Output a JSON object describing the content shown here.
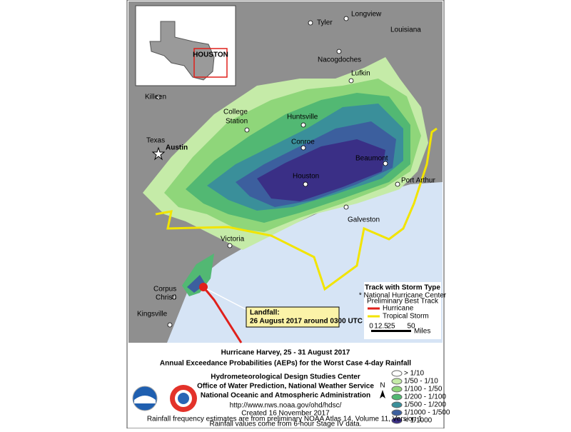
{
  "inset": {
    "label": "HOUSTON"
  },
  "cities": [
    "Tyler",
    "Longview",
    "Louisiana",
    "Nacogdoches",
    "Lufkin",
    "Killeen",
    "College",
    "Station",
    "Huntsville",
    "Austin",
    "Texas",
    "Conroe",
    "Beaumont",
    "Houston",
    "Port Arthur",
    "Galveston",
    "Victoria",
    "Corpus",
    "Christi",
    "Kingsville"
  ],
  "track_legend": {
    "title": "Track with Storm Type",
    "note": [
      "* National Hurricane Center",
      "Preliminary Best Track"
    ],
    "items": [
      {
        "label": "Hurricane",
        "color": "#e0201b"
      },
      {
        "label": "Tropical Storm",
        "color": "#f2e400"
      }
    ],
    "scale": [
      "0",
      "12.5",
      "25",
      "50"
    ],
    "scale_unit": "Miles"
  },
  "landfall": {
    "title": "Landfall:",
    "text": "26 August 2017 around 0300 UTC"
  },
  "title": [
    "Hurricane Harvey, 25 - 31 August 2017",
    "Annual Exceedance Probabilities (AEPs) for the Worst Case 4-day Rainfall"
  ],
  "agency": [
    "Hydrometeorological Design Studies Center",
    "Office of Water Prediction, National Weather Service",
    "National Oceanic and Atmospheric Administration"
  ],
  "url": "http://www.nws.noaa.gov/ohd/hdsc/",
  "notes": [
    "Created 16 November 2017",
    "Rainfall frequency estimates are from preliminary NOAA Atlas 14, Volume 11, Version 1.",
    "Rainfall values come from 6-hour Stage IV data."
  ],
  "north": "N",
  "aep_legend": [
    {
      "label": "> 1/10",
      "color": "#ffffff"
    },
    {
      "label": "1/50 - 1/10",
      "color": "#c5eba8"
    },
    {
      "label": "1/100 - 1/50",
      "color": "#8fd67a"
    },
    {
      "label": "1/200 - 1/100",
      "color": "#52b873"
    },
    {
      "label": "1/500 - 1/200",
      "color": "#3a8f9a"
    },
    {
      "label": "1/1000 - 1/500",
      "color": "#3c5f9e"
    },
    {
      "label": "< 1/1000",
      "color": "#3a2f86"
    }
  ]
}
